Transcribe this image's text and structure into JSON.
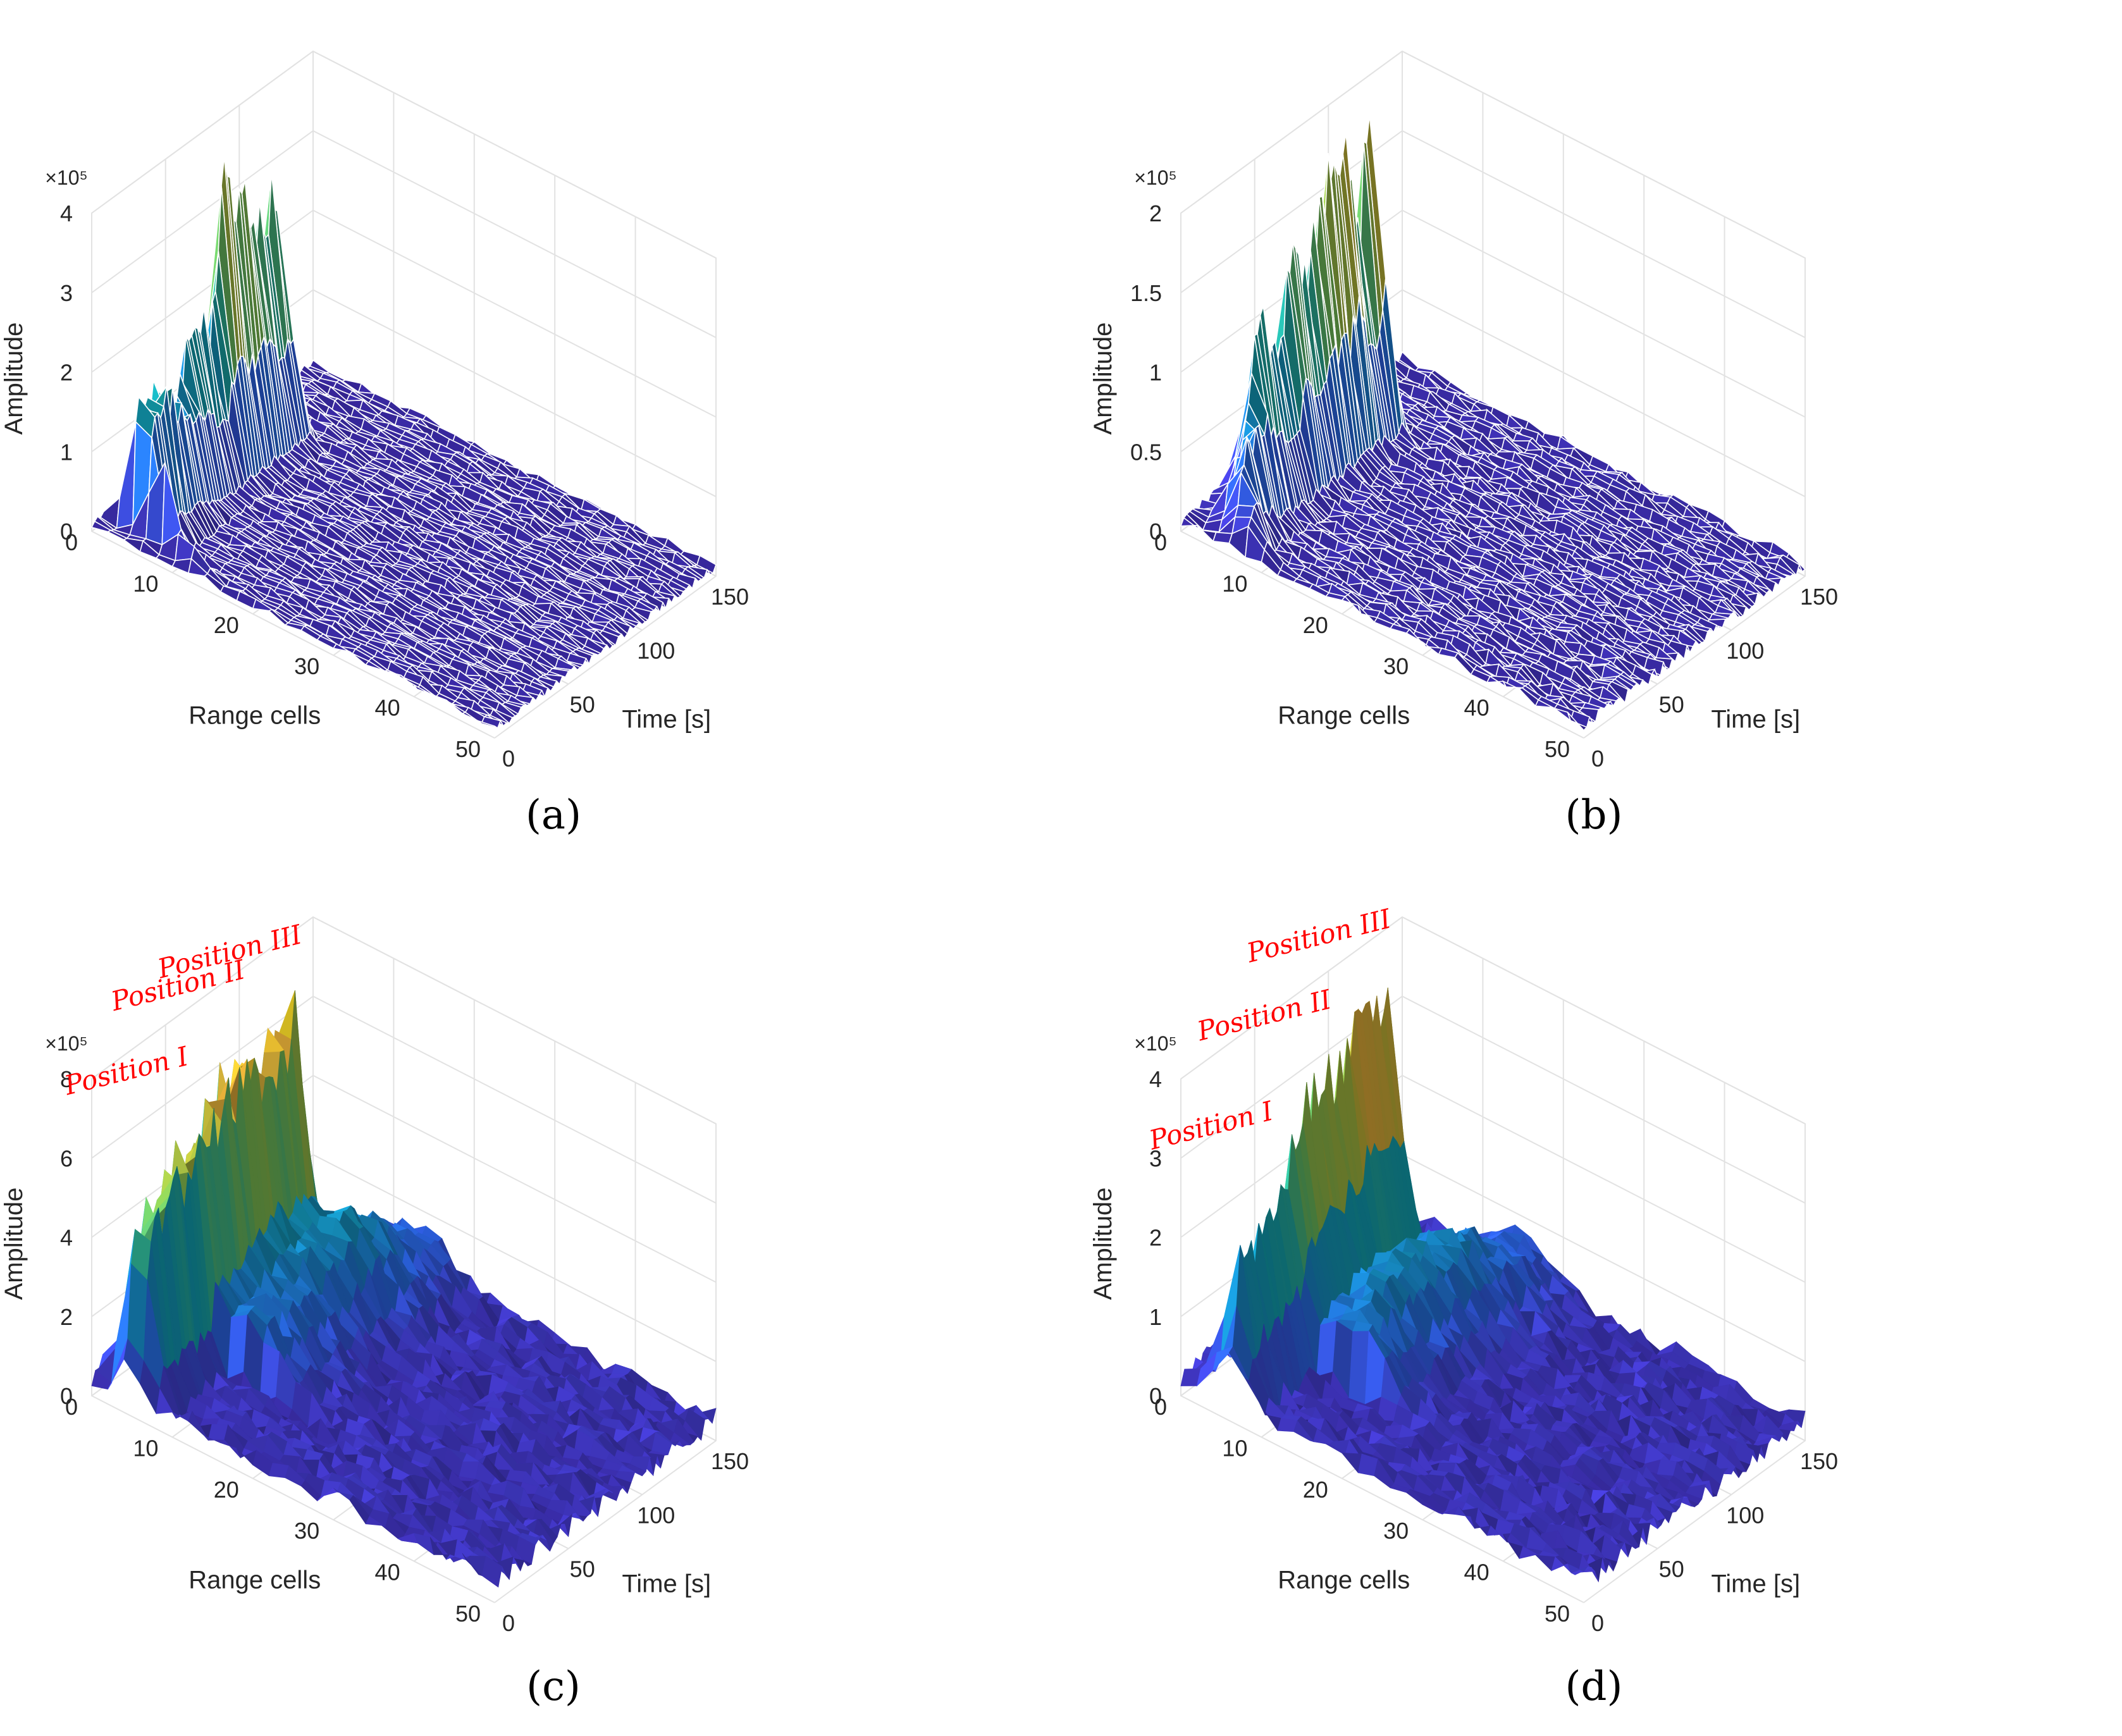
{
  "figure": {
    "panels_order": [
      "a",
      "b",
      "c",
      "d"
    ]
  },
  "colors": {
    "parula": [
      "#3e26a8",
      "#4743e0",
      "#2f6cf9",
      "#1a8fd8",
      "#12aabd",
      "#34bf9a",
      "#7cc95b",
      "#c1c23b",
      "#f2b63c",
      "#f8df24",
      "#f9fb15"
    ],
    "grid": "#e2e2e2",
    "axis": "#262626",
    "annotation": "#ff0000",
    "wire": "#ffffff"
  },
  "chart_data": [
    {
      "type": "surface",
      "id": "a",
      "panel_label": "(a)",
      "title": "",
      "xlabel": "Time [s]",
      "ylabel": "Range cells",
      "zlabel": "Amplitude",
      "exponent_label": "×10⁵",
      "style": "mesh",
      "x_range": [
        0,
        150
      ],
      "y_range": [
        0,
        50
      ],
      "z_range": [
        0,
        4
      ],
      "x_ticks": [
        "0",
        "50",
        "100",
        "150"
      ],
      "y_ticks": [
        "0",
        "10",
        "20",
        "30",
        "40",
        "50"
      ],
      "z_ticks": [
        "0",
        "1",
        "2",
        "3",
        "4"
      ],
      "noise_floor": 0.12,
      "target_ridge": [
        {
          "time": 3,
          "range_cell": 12,
          "amplitude": 0.15
        },
        {
          "time": 8,
          "range_cell": 5,
          "amplitude": 1.9
        },
        {
          "time": 20,
          "range_cell": 5,
          "amplitude": 2.1
        },
        {
          "time": 35,
          "range_cell": 5,
          "amplitude": 1.5
        },
        {
          "time": 48,
          "range_cell": 4,
          "amplitude": 2.4
        },
        {
          "time": 58,
          "range_cell": 4,
          "amplitude": 1.9
        },
        {
          "time": 68,
          "range_cell": 4,
          "amplitude": 3.8
        },
        {
          "time": 76,
          "range_cell": 4,
          "amplitude": 3.2
        },
        {
          "time": 85,
          "range_cell": 4,
          "amplitude": 3.5
        },
        {
          "time": 95,
          "range_cell": 4,
          "amplitude": 2.6
        },
        {
          "time": 103,
          "range_cell": 4,
          "amplitude": 3.4
        },
        {
          "time": 110,
          "range_cell": 4,
          "amplitude": 0.5
        }
      ],
      "annotations": []
    },
    {
      "type": "surface",
      "id": "b",
      "panel_label": "(b)",
      "title": "",
      "xlabel": "Time [s]",
      "ylabel": "Range cells",
      "zlabel": "Amplitude",
      "exponent_label": "×10⁵",
      "style": "mesh",
      "x_range": [
        0,
        150
      ],
      "y_range": [
        0,
        50
      ],
      "z_range": [
        0,
        2
      ],
      "x_ticks": [
        "0",
        "50",
        "100",
        "150"
      ],
      "y_ticks": [
        "0",
        "10",
        "20",
        "30",
        "40",
        "50"
      ],
      "z_ticks": [
        "0",
        "0.5",
        "1",
        "1.5",
        "2"
      ],
      "noise_floor": 0.08,
      "target_ridge": [
        {
          "time": 3,
          "range_cell": 8,
          "amplitude": 0.2
        },
        {
          "time": 10,
          "range_cell": 6,
          "amplitude": 0.5
        },
        {
          "time": 22,
          "range_cell": 5,
          "amplitude": 0.7
        },
        {
          "time": 32,
          "range_cell": 4,
          "amplitude": 1.3
        },
        {
          "time": 45,
          "range_cell": 4,
          "amplitude": 0.8
        },
        {
          "time": 53,
          "range_cell": 4,
          "amplitude": 1.7
        },
        {
          "time": 63,
          "range_cell": 4,
          "amplitude": 1.2
        },
        {
          "time": 73,
          "range_cell": 4,
          "amplitude": 1.8
        },
        {
          "time": 82,
          "range_cell": 4,
          "amplitude": 1.8
        },
        {
          "time": 90,
          "range_cell": 4,
          "amplitude": 2.2
        },
        {
          "time": 98,
          "range_cell": 4,
          "amplitude": 1.3
        },
        {
          "time": 106,
          "range_cell": 4,
          "amplitude": 2.1
        },
        {
          "time": 112,
          "range_cell": 4,
          "amplitude": 0.3
        }
      ],
      "annotations": []
    },
    {
      "type": "surface",
      "id": "c",
      "panel_label": "(c)",
      "title": "",
      "xlabel": "Time [s]",
      "ylabel": "Range cells",
      "zlabel": "Amplitude",
      "exponent_label": "×10⁵",
      "style": "shaded",
      "x_range": [
        0,
        150
      ],
      "y_range": [
        0,
        50
      ],
      "z_range": [
        0,
        8
      ],
      "x_ticks": [
        "0",
        "50",
        "100",
        "150"
      ],
      "y_ticks": [
        "0",
        "10",
        "20",
        "30",
        "40",
        "50"
      ],
      "z_ticks": [
        "0",
        "2",
        "4",
        "6",
        "8"
      ],
      "noise_floor": 0.6,
      "target_ridge": [
        {
          "time": 2,
          "range_cell": 5,
          "amplitude": 0.8
        },
        {
          "time": 6,
          "range_cell": 5,
          "amplitude": 5.0
        },
        {
          "time": 20,
          "range_cell": 5,
          "amplitude": 5.8
        },
        {
          "time": 40,
          "range_cell": 5,
          "amplitude": 6.2
        },
        {
          "time": 55,
          "range_cell": 5,
          "amplitude": 6.6
        },
        {
          "time": 70,
          "range_cell": 5,
          "amplitude": 7.2
        },
        {
          "time": 80,
          "range_cell": 5,
          "amplitude": 7.0
        },
        {
          "time": 90,
          "range_cell": 5,
          "amplitude": 6.6
        },
        {
          "time": 100,
          "range_cell": 5,
          "amplitude": 7.0
        },
        {
          "time": 108,
          "range_cell": 5,
          "amplitude": 7.6
        },
        {
          "time": 112,
          "range_cell": 5,
          "amplitude": 1.2
        }
      ],
      "secondary_ridge": [
        {
          "time": 40,
          "range_cell": 12,
          "amplitude": 1.6
        },
        {
          "time": 80,
          "range_cell": 11,
          "amplitude": 2.2
        },
        {
          "time": 110,
          "range_cell": 12,
          "amplitude": 2.6
        },
        {
          "time": 140,
          "range_cell": 13,
          "amplitude": 1.2
        }
      ],
      "annotations": [
        {
          "text": "Position I",
          "time": 25,
          "range_cell": 0,
          "amplitude": 7.3
        },
        {
          "text": "Position II",
          "time": 60,
          "range_cell": 0,
          "amplitude": 8.5
        },
        {
          "text": "Position III",
          "time": 95,
          "range_cell": 0,
          "amplitude": 8.4
        }
      ]
    },
    {
      "type": "surface",
      "id": "d",
      "panel_label": "(d)",
      "title": "",
      "xlabel": "Time [s]",
      "ylabel": "Range cells",
      "zlabel": "Amplitude",
      "exponent_label": "×10⁵",
      "style": "shaded",
      "x_range": [
        0,
        150
      ],
      "y_range": [
        0,
        50
      ],
      "z_range": [
        0,
        4
      ],
      "x_ticks": [
        "0",
        "50",
        "100",
        "150"
      ],
      "y_ticks": [
        "0",
        "10",
        "20",
        "30",
        "40",
        "50"
      ],
      "z_ticks": [
        "0",
        "1",
        "2",
        "3",
        "4"
      ],
      "noise_floor": 0.3,
      "target_ridge": [
        {
          "time": 2,
          "range_cell": 6,
          "amplitude": 0.6
        },
        {
          "time": 8,
          "range_cell": 6,
          "amplitude": 1.8
        },
        {
          "time": 25,
          "range_cell": 6,
          "amplitude": 2.0
        },
        {
          "time": 40,
          "range_cell": 6,
          "amplitude": 2.1
        },
        {
          "time": 44,
          "range_cell": 6,
          "amplitude": 2.8
        },
        {
          "time": 62,
          "range_cell": 6,
          "amplitude": 3.0
        },
        {
          "time": 78,
          "range_cell": 6,
          "amplitude": 3.1
        },
        {
          "time": 82,
          "range_cell": 6,
          "amplitude": 3.6
        },
        {
          "time": 96,
          "range_cell": 6,
          "amplitude": 3.7
        },
        {
          "time": 108,
          "range_cell": 6,
          "amplitude": 3.9
        },
        {
          "time": 112,
          "range_cell": 6,
          "amplitude": 0.8
        }
      ],
      "secondary_ridge": [
        {
          "time": 40,
          "range_cell": 14,
          "amplitude": 0.9
        },
        {
          "time": 80,
          "range_cell": 13,
          "amplitude": 1.2
        },
        {
          "time": 110,
          "range_cell": 14,
          "amplitude": 1.1
        },
        {
          "time": 140,
          "range_cell": 15,
          "amplitude": 0.6
        }
      ],
      "annotations": [
        {
          "text": "Position I",
          "time": 22,
          "range_cell": 0,
          "amplitude": 3.0
        },
        {
          "text": "Position II",
          "time": 58,
          "range_cell": 0,
          "amplitude": 3.9
        },
        {
          "text": "Position III",
          "time": 95,
          "range_cell": 0,
          "amplitude": 4.4
        }
      ]
    }
  ]
}
